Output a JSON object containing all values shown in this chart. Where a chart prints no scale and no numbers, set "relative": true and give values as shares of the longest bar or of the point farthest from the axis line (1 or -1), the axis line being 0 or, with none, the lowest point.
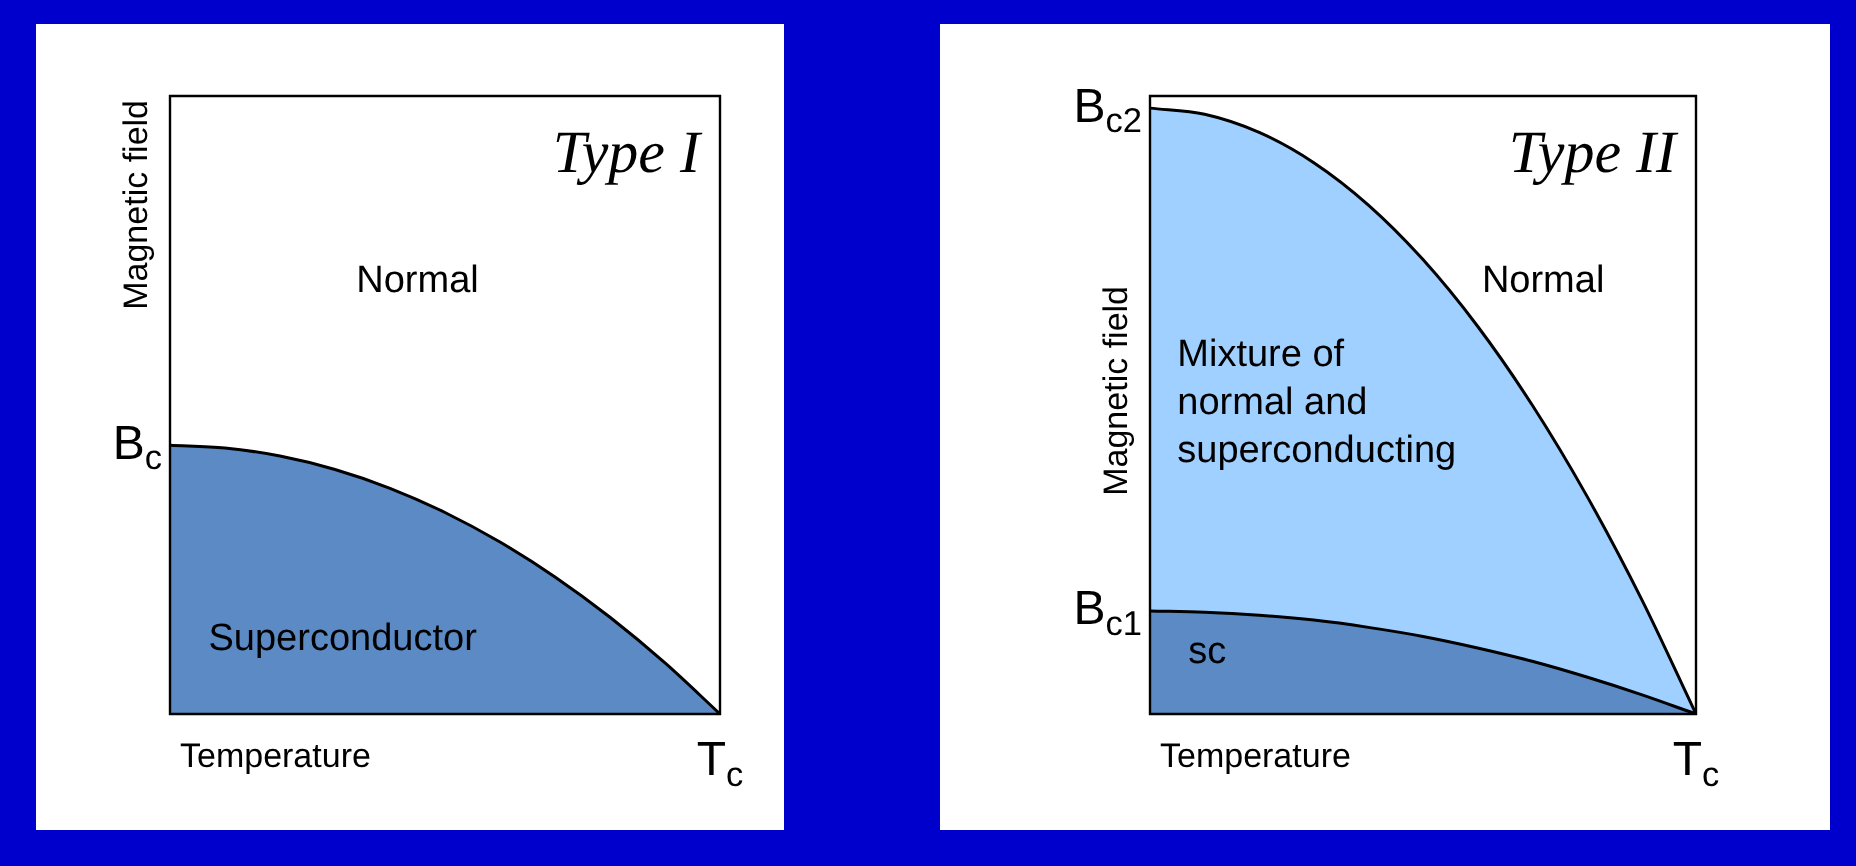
{
  "chart_data": [
    {
      "type": "area",
      "title": "Type I",
      "xlabel": "Temperature",
      "ylabel": "Magnetic field",
      "relative": true,
      "legend": false,
      "categories": [
        null,
        null,
        null,
        null,
        null,
        null,
        null,
        null,
        null,
        null,
        null
      ],
      "series": [
        {
          "color": "#5b8ac4",
          "values": [
            1,
            0.99,
            0.96,
            0.91,
            0.84,
            0.75,
            0.64,
            0.51,
            0.36,
            0.19,
            0
          ]
        }
      ],
      "annotations": [
        "B$_{c}$",
        "Normal",
        "Superconductor",
        "T$_{c}$"
      ]
    },
    {
      "type": "area",
      "title": "Type II",
      "xlabel": "Temperature",
      "ylabel": "Magnetic field",
      "relative": true,
      "legend": false,
      "categories": [
        null,
        null,
        null,
        null,
        null,
        null,
        null,
        null,
        null,
        null,
        null
      ],
      "series": [
        {
          "color": "#a0d0ff",
          "values": [
            1,
            0.99,
            0.96,
            0.91,
            0.84,
            0.75,
            0.64,
            0.51,
            0.36,
            0.19,
            0
          ]
        },
        {
          "color": "#5b8ac4",
          "values": [
            0.17,
            0.168,
            0.163,
            0.155,
            0.143,
            0.128,
            0.109,
            0.087,
            0.061,
            0.032,
            0
          ]
        }
      ],
      "annotations": [
        "B$_{c2}$",
        "B$_{c1}$",
        "Normal",
        "Mixture of\nnormal and\nsuperconducting",
        "sc",
        "T$_{c}$"
      ]
    }
  ]
}
